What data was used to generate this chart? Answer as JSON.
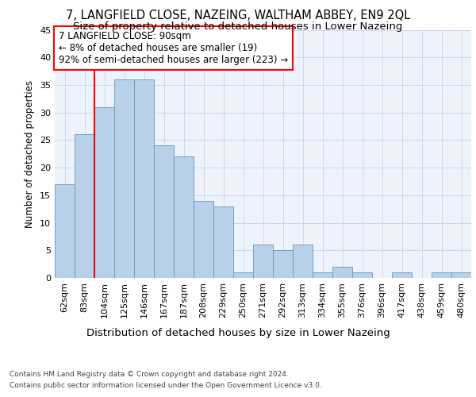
{
  "title": "7, LANGFIELD CLOSE, NAZEING, WALTHAM ABBEY, EN9 2QL",
  "subtitle": "Size of property relative to detached houses in Lower Nazeing",
  "xlabel": "Distribution of detached houses by size in Lower Nazeing",
  "ylabel": "Number of detached properties",
  "categories": [
    "62sqm",
    "83sqm",
    "104sqm",
    "125sqm",
    "146sqm",
    "167sqm",
    "187sqm",
    "208sqm",
    "229sqm",
    "250sqm",
    "271sqm",
    "292sqm",
    "313sqm",
    "334sqm",
    "355sqm",
    "376sqm",
    "396sqm",
    "417sqm",
    "438sqm",
    "459sqm",
    "480sqm"
  ],
  "values": [
    17,
    26,
    31,
    36,
    36,
    24,
    22,
    14,
    13,
    1,
    6,
    5,
    6,
    1,
    2,
    1,
    0,
    1,
    0,
    1,
    1
  ],
  "bar_color": "#b8d0e8",
  "bar_edge_color": "#6699bb",
  "background_color": "#eef2fa",
  "grid_color": "#ccd8ee",
  "annotation_text": "7 LANGFIELD CLOSE: 90sqm\n← 8% of detached houses are smaller (19)\n92% of semi-detached houses are larger (223) →",
  "annotation_box_color": "white",
  "annotation_box_edge": "red",
  "vline_x_index": 1.5,
  "ylim": [
    0,
    45
  ],
  "yticks": [
    0,
    5,
    10,
    15,
    20,
    25,
    30,
    35,
    40,
    45
  ],
  "footer_line1": "Contains HM Land Registry data © Crown copyright and database right 2024.",
  "footer_line2": "Contains public sector information licensed under the Open Government Licence v3.0.",
  "title_fontsize": 10.5,
  "subtitle_fontsize": 9.5,
  "xlabel_fontsize": 9.5,
  "ylabel_fontsize": 8.5,
  "tick_fontsize": 8,
  "annotation_fontsize": 8.5,
  "footer_fontsize": 6.5
}
